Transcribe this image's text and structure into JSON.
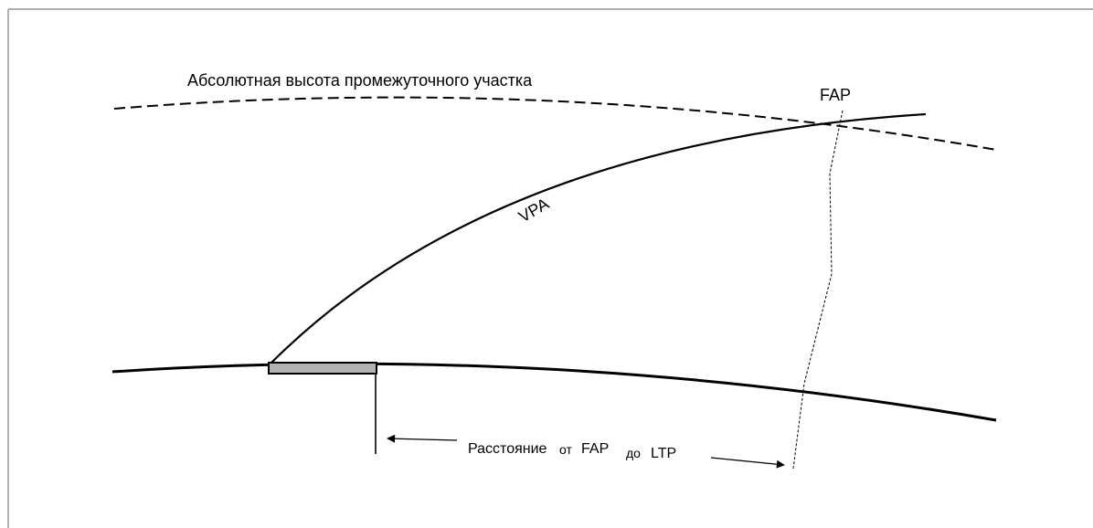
{
  "labels": {
    "intermediate_altitude": "Абсолютная высота промежуточного участка",
    "fap": "FAP",
    "vpa": "VPA",
    "distance_part1": "Расстояние",
    "distance_part2": "от",
    "distance_part3": "FAP",
    "distance_part4": "до",
    "distance_part5": "LTP"
  },
  "colors": {
    "line": "#000000",
    "runway_fill": "#b3b3b3",
    "frame_border": "#808080"
  }
}
